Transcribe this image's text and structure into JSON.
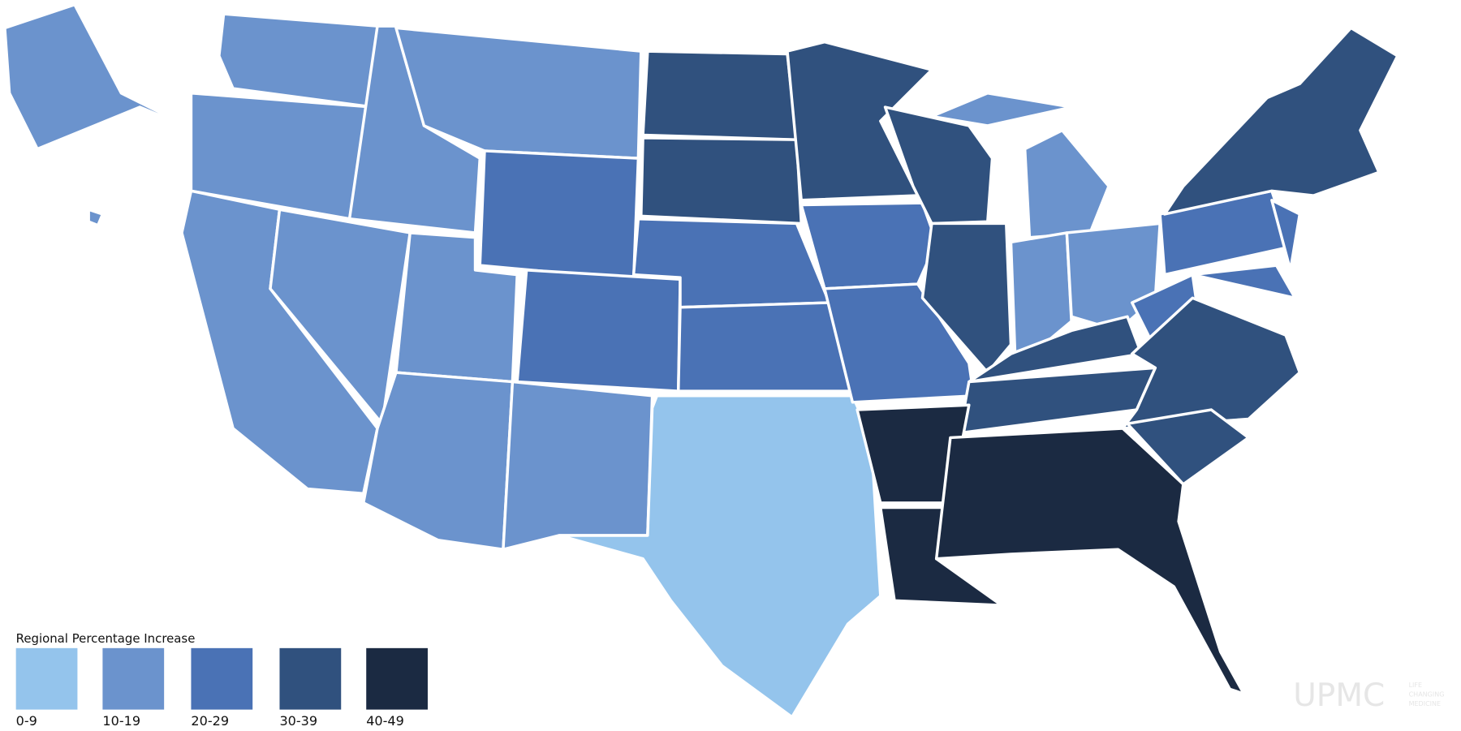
{
  "legend": {
    "title": "Regional Percentage Increase",
    "items": [
      {
        "label": "0-9",
        "color": "#94c4ec"
      },
      {
        "label": "10-19",
        "color": "#6b93cd"
      },
      {
        "label": "20-29",
        "color": "#4a72b5"
      },
      {
        "label": "30-39",
        "color": "#30517e"
      },
      {
        "label": "40-49",
        "color": "#1b2a42"
      }
    ]
  },
  "logo": {
    "name": "UPMC",
    "tagline": [
      "LIFE",
      "CHANGING",
      "MEDICINE"
    ]
  }
}
